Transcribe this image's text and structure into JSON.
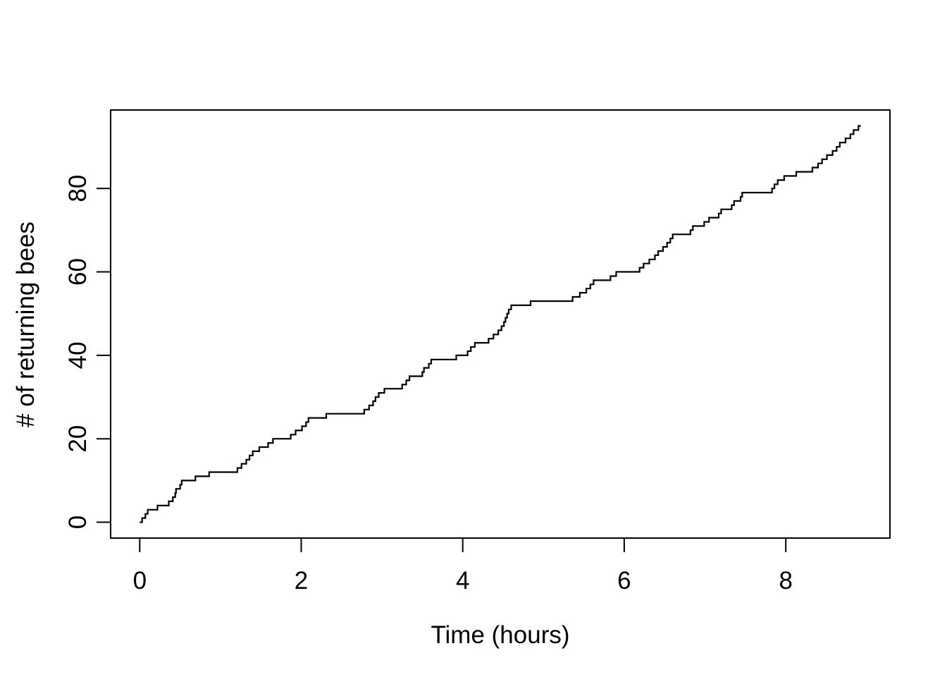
{
  "chart_data": {
    "type": "line",
    "subtype": "step-cumulative",
    "title": "",
    "xlabel": "Time (hours)",
    "ylabel": "# of returning bees",
    "x_ticks": [
      0,
      2,
      4,
      6,
      8
    ],
    "y_ticks": [
      0,
      20,
      40,
      60,
      80
    ],
    "xlim": [
      -0.36,
      9.29
    ],
    "ylim": [
      -3.8,
      98.8
    ],
    "grid": false,
    "legend": "none",
    "line_color": "#000000",
    "background_color": "#ffffff",
    "start_point": {
      "time": 0,
      "count": 0
    },
    "end_time": 8.93,
    "final_count": 95,
    "event_times_hours": [
      0.03,
      0.07,
      0.1,
      0.22,
      0.36,
      0.41,
      0.44,
      0.45,
      0.5,
      0.52,
      0.69,
      0.86,
      1.21,
      1.26,
      1.32,
      1.36,
      1.4,
      1.48,
      1.59,
      1.65,
      1.87,
      1.93,
      2.01,
      2.06,
      2.09,
      2.31,
      2.78,
      2.84,
      2.89,
      2.92,
      2.96,
      3.03,
      3.25,
      3.3,
      3.34,
      3.5,
      3.52,
      3.58,
      3.61,
      3.92,
      4.06,
      4.1,
      4.15,
      4.32,
      4.38,
      4.44,
      4.48,
      4.51,
      4.53,
      4.55,
      4.57,
      4.6,
      4.84,
      5.36,
      5.45,
      5.53,
      5.58,
      5.62,
      5.83,
      5.9,
      6.19,
      6.24,
      6.31,
      6.38,
      6.42,
      6.48,
      6.53,
      6.57,
      6.6,
      6.82,
      6.85,
      6.99,
      7.05,
      7.17,
      7.2,
      7.33,
      7.36,
      7.44,
      7.46,
      7.83,
      7.86,
      7.9,
      7.98,
      8.13,
      8.33,
      8.4,
      8.45,
      8.51,
      8.58,
      8.63,
      8.67,
      8.74,
      8.8,
      8.84,
      8.9
    ]
  }
}
